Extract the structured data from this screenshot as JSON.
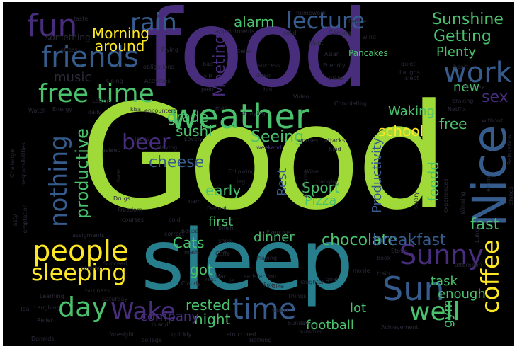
{
  "palette": {
    "background": "#000000",
    "frame": "#ffffff",
    "lime": "#a0da39",
    "teal": "#277f8e",
    "purple": "#472d7b",
    "blue": "#365c8d",
    "green": "#4ac16d",
    "yellow": "#fde725",
    "dark": "#2b2b3a",
    "aqua": "#1fa187"
  },
  "words": [
    {
      "text": "Good",
      "color": "lime"
    },
    {
      "text": "food",
      "color": "purple"
    },
    {
      "text": "sleep",
      "color": "teal"
    },
    {
      "text": "weather",
      "color": "green"
    },
    {
      "text": "Nice",
      "color": "blue"
    },
    {
      "text": "free time",
      "color": "green"
    },
    {
      "text": "friends",
      "color": "blue"
    },
    {
      "text": "fun",
      "color": "purple"
    },
    {
      "text": "rain",
      "color": "blue"
    },
    {
      "text": "lecture",
      "color": "blue"
    },
    {
      "text": "work",
      "color": "blue"
    },
    {
      "text": "Sun",
      "color": "blue"
    },
    {
      "text": "Sunny",
      "color": "purple"
    },
    {
      "text": "people",
      "color": "yellow"
    },
    {
      "text": "sleeping",
      "color": "yellow"
    },
    {
      "text": "day",
      "color": "green"
    },
    {
      "text": "Wake",
      "color": "purple"
    },
    {
      "text": "time",
      "color": "blue"
    },
    {
      "text": "well",
      "color": "green"
    },
    {
      "text": "coffee",
      "color": "yellow"
    },
    {
      "text": "nothing",
      "color": "blue"
    },
    {
      "text": "beer",
      "color": "purple"
    },
    {
      "text": "Sunshine",
      "color": "green"
    },
    {
      "text": "Getting",
      "color": "green"
    },
    {
      "text": "Plenty",
      "color": "green"
    },
    {
      "text": "Morning",
      "color": "yellow"
    },
    {
      "text": "around",
      "color": "yellow"
    },
    {
      "text": "alarm",
      "color": "green"
    },
    {
      "text": "grade",
      "color": "green"
    },
    {
      "text": "sushi",
      "color": "green"
    },
    {
      "text": "cheese",
      "color": "blue"
    },
    {
      "text": "productive",
      "color": "green"
    },
    {
      "text": "music",
      "color": "dark"
    },
    {
      "text": "Meeting",
      "color": "purple"
    },
    {
      "text": "chocolate",
      "color": "green"
    },
    {
      "text": "breakfast",
      "color": "blue"
    },
    {
      "text": "dinner",
      "color": "green"
    },
    {
      "text": "Cats",
      "color": "green"
    },
    {
      "text": "got",
      "color": "green"
    },
    {
      "text": "night",
      "color": "green"
    },
    {
      "text": "rested",
      "color": "green"
    },
    {
      "text": "early",
      "color": "green"
    },
    {
      "text": "first",
      "color": "green"
    },
    {
      "text": "Rest",
      "color": "blue"
    },
    {
      "text": "Sport",
      "color": "green"
    },
    {
      "text": "Pizza",
      "color": "green"
    },
    {
      "text": "Productivity",
      "color": "blue"
    },
    {
      "text": "Waking",
      "color": "green"
    },
    {
      "text": "school",
      "color": "yellow"
    },
    {
      "text": "Seeing",
      "color": "green"
    },
    {
      "text": "free",
      "color": "green"
    },
    {
      "text": "foodd",
      "color": "green"
    },
    {
      "text": "fast",
      "color": "green"
    },
    {
      "text": "sex",
      "color": "purple"
    },
    {
      "text": "new",
      "color": "green"
    },
    {
      "text": "task",
      "color": "green"
    },
    {
      "text": "enough",
      "color": "green"
    },
    {
      "text": "gym",
      "color": "green"
    },
    {
      "text": "lot",
      "color": "green"
    },
    {
      "text": "football",
      "color": "green"
    },
    {
      "text": "company",
      "color": "purple"
    },
    {
      "text": "Pancakes",
      "color": "green"
    },
    {
      "text": "something",
      "color": "dark"
    },
    {
      "text": "homework",
      "color": "dark"
    },
    {
      "text": "Flying",
      "color": "dark"
    },
    {
      "text": "Relax",
      "color": "dark"
    },
    {
      "text": "Friendly",
      "color": "dark"
    },
    {
      "text": "Laughs",
      "color": "dark"
    },
    {
      "text": "Holiday",
      "color": "dark"
    },
    {
      "text": "Netflix",
      "color": "dark"
    },
    {
      "text": "Energy",
      "color": "dark"
    },
    {
      "text": "Activities",
      "color": "dark"
    },
    {
      "text": "Video",
      "color": "dark"
    },
    {
      "text": "Completing",
      "color": "dark"
    },
    {
      "text": "studying",
      "color": "dark"
    },
    {
      "text": "weekend",
      "color": "purple"
    },
    {
      "text": "Wine",
      "color": "dark"
    },
    {
      "text": "Hanging",
      "color": "dark"
    },
    {
      "text": "Drugs",
      "color": "dark"
    },
    {
      "text": "Freedom",
      "color": "dark"
    },
    {
      "text": "Playing",
      "color": "dark"
    },
    {
      "text": "Achieving",
      "color": "dark"
    },
    {
      "text": "Exercise",
      "color": "dark"
    },
    {
      "text": "satisfaction",
      "color": "dark"
    },
    {
      "text": "Bike",
      "color": "dark"
    },
    {
      "text": "laughter",
      "color": "dark"
    },
    {
      "text": "Things",
      "color": "dark"
    },
    {
      "text": "goal",
      "color": "dark"
    },
    {
      "text": "movie",
      "color": "dark"
    },
    {
      "text": "train",
      "color": "dark"
    },
    {
      "text": "afternoon",
      "color": "dark"
    },
    {
      "text": "Guest",
      "color": "dark"
    },
    {
      "text": "Sunday",
      "color": "dark"
    },
    {
      "text": "summer",
      "color": "dark"
    },
    {
      "text": "Achievement",
      "color": "dark"
    },
    {
      "text": "structured",
      "color": "dark"
    },
    {
      "text": "Nothing",
      "color": "dark"
    },
    {
      "text": "quickly",
      "color": "dark"
    },
    {
      "text": "college",
      "color": "dark"
    },
    {
      "text": "foresight",
      "color": "dark"
    },
    {
      "text": "Donalds",
      "color": "dark"
    },
    {
      "text": "Relief",
      "color": "dark"
    },
    {
      "text": "Laughing",
      "color": "dark"
    },
    {
      "text": "Learning",
      "color": "dark"
    },
    {
      "text": "business",
      "color": "dark"
    },
    {
      "text": "Saturday",
      "color": "dark"
    },
    {
      "text": "Succeed",
      "color": "dark"
    },
    {
      "text": "coming",
      "color": "dark"
    },
    {
      "text": "assigments",
      "color": "dark"
    },
    {
      "text": "Tasty",
      "color": "dark"
    },
    {
      "text": "Temptation",
      "color": "dark"
    },
    {
      "text": "Challenge",
      "color": "dark"
    },
    {
      "text": "responsibilities",
      "color": "dark"
    },
    {
      "text": "Watch",
      "color": "dark"
    },
    {
      "text": "daily",
      "color": "dark"
    },
    {
      "text": "Lottery",
      "color": "dark"
    },
    {
      "text": "kiss",
      "color": "dark"
    },
    {
      "text": "encounters",
      "color": "dark"
    },
    {
      "text": "obligations",
      "color": "dark"
    },
    {
      "text": "Going",
      "color": "dark"
    },
    {
      "text": "stress",
      "color": "dark"
    },
    {
      "text": "appointments",
      "color": "dark"
    },
    {
      "text": "solid",
      "color": "dark"
    },
    {
      "text": "bad",
      "color": "dark"
    },
    {
      "text": "sip",
      "color": "dark"
    },
    {
      "text": "pain",
      "color": "dark"
    },
    {
      "text": "success",
      "color": "dark"
    },
    {
      "text": "hot",
      "color": "dark"
    },
    {
      "text": "plans",
      "color": "dark"
    },
    {
      "text": "quiet",
      "color": "dark"
    },
    {
      "text": "slept",
      "color": "dark"
    },
    {
      "text": "heart",
      "color": "dark"
    },
    {
      "text": "braking",
      "color": "dark"
    },
    {
      "text": "without",
      "color": "dark"
    },
    {
      "text": "Relaxation",
      "color": "dark"
    },
    {
      "text": "errors",
      "color": "dark"
    },
    {
      "text": "shines",
      "color": "dark"
    },
    {
      "text": "Winning",
      "color": "dark"
    },
    {
      "text": "Lunch",
      "color": "dark"
    },
    {
      "text": "worries",
      "color": "dark"
    },
    {
      "text": "attacks",
      "color": "dark"
    },
    {
      "text": "Kind",
      "color": "dark"
    },
    {
      "text": "Staying",
      "color": "dark"
    },
    {
      "text": "Lovely",
      "color": "dark"
    },
    {
      "text": "Jezus",
      "color": "dark"
    },
    {
      "text": "asleep",
      "color": "dark"
    },
    {
      "text": "Following",
      "color": "dark"
    },
    {
      "text": "leg",
      "color": "dark"
    },
    {
      "text": "done",
      "color": "dark"
    },
    {
      "text": "courses",
      "color": "dark"
    },
    {
      "text": "cold",
      "color": "dark"
    },
    {
      "text": "house",
      "color": "dark"
    },
    {
      "text": "correct",
      "color": "dark"
    },
    {
      "text": "Cloudy",
      "color": "dark"
    },
    {
      "text": "math",
      "color": "dark"
    },
    {
      "text": "snow",
      "color": "dark"
    },
    {
      "text": "Fox",
      "color": "dark"
    },
    {
      "text": "book",
      "color": "dark"
    },
    {
      "text": "salary",
      "color": "dark"
    },
    {
      "text": "experiences",
      "color": "dark"
    },
    {
      "text": "Storm",
      "color": "dark"
    },
    {
      "text": "Dance",
      "color": "dark"
    },
    {
      "text": "Gaming",
      "color": "dark"
    },
    {
      "text": "wind",
      "color": "dark"
    },
    {
      "text": "blunt",
      "color": "dark"
    },
    {
      "text": "Asian",
      "color": "dark"
    },
    {
      "text": "deep",
      "color": "dark"
    },
    {
      "text": "taste",
      "color": "dark"
    },
    {
      "text": "man",
      "color": "dark"
    },
    {
      "text": "Decent",
      "color": "dark"
    },
    {
      "text": "finish",
      "color": "dark"
    },
    {
      "text": "Mac",
      "color": "dark"
    },
    {
      "text": "Tea",
      "color": "dark"
    },
    {
      "text": "island",
      "color": "dark"
    },
    {
      "text": "Coffe",
      "color": "dark"
    },
    {
      "text": "nam",
      "color": "dark"
    },
    {
      "text": "rest",
      "color": "dark"
    },
    {
      "text": "ie",
      "color": "dark"
    }
  ]
}
